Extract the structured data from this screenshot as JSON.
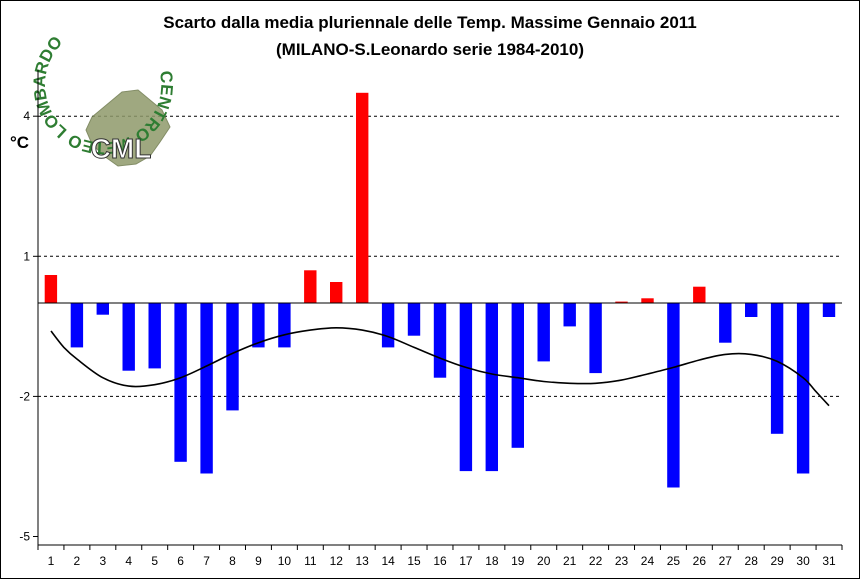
{
  "chart_data": {
    "type": "bar",
    "title": "Scarto dalla media pluriennale delle Temp. Massime Gennaio 2011",
    "subtitle": "(MILANO-S.Leonardo serie 1984-2010)",
    "ylabel": "°C",
    "ylim": [
      -5,
      5
    ],
    "yticks": [
      4,
      1,
      -2,
      -5
    ],
    "grid": "horizontal-dashed",
    "categories": [
      "1",
      "2",
      "3",
      "4",
      "5",
      "6",
      "7",
      "8",
      "9",
      "10",
      "11",
      "12",
      "13",
      "14",
      "15",
      "16",
      "17",
      "18",
      "19",
      "20",
      "21",
      "22",
      "23",
      "24",
      "25",
      "26",
      "27",
      "28",
      "29",
      "30",
      "31"
    ],
    "values": [
      0.6,
      -0.95,
      -0.25,
      -1.45,
      -1.4,
      -3.4,
      -3.65,
      -2.3,
      -0.95,
      -0.95,
      0.7,
      0.45,
      4.5,
      -0.95,
      -0.7,
      -1.6,
      -3.6,
      -3.6,
      -3.1,
      -1.25,
      -0.5,
      -1.5,
      0.03,
      0.1,
      -3.95,
      0.35,
      -0.85,
      -0.3,
      -2.8,
      -3.65,
      -0.3
    ],
    "colors": {
      "positive": "#ff0000",
      "negative": "#0000ff",
      "trend": "#000000"
    },
    "trend": {
      "x": [
        1,
        1.5,
        2,
        3,
        4,
        5,
        6,
        7,
        8,
        9,
        10,
        11,
        12,
        13,
        14,
        15,
        16,
        17,
        18,
        19,
        20,
        21,
        22,
        23,
        24,
        25,
        26,
        27,
        28,
        29,
        30,
        30.5,
        31
      ],
      "values": [
        -0.6,
        -0.95,
        -1.2,
        -1.6,
        -1.78,
        -1.75,
        -1.6,
        -1.35,
        -1.08,
        -0.85,
        -0.68,
        -0.58,
        -0.53,
        -0.58,
        -0.72,
        -0.95,
        -1.18,
        -1.38,
        -1.52,
        -1.6,
        -1.68,
        -1.72,
        -1.72,
        -1.65,
        -1.52,
        -1.38,
        -1.22,
        -1.1,
        -1.1,
        -1.25,
        -1.6,
        -1.9,
        -2.2
      ]
    }
  },
  "logo": {
    "initials": "CML",
    "ring_text": "CENTRO METEO LOMBARDO"
  }
}
